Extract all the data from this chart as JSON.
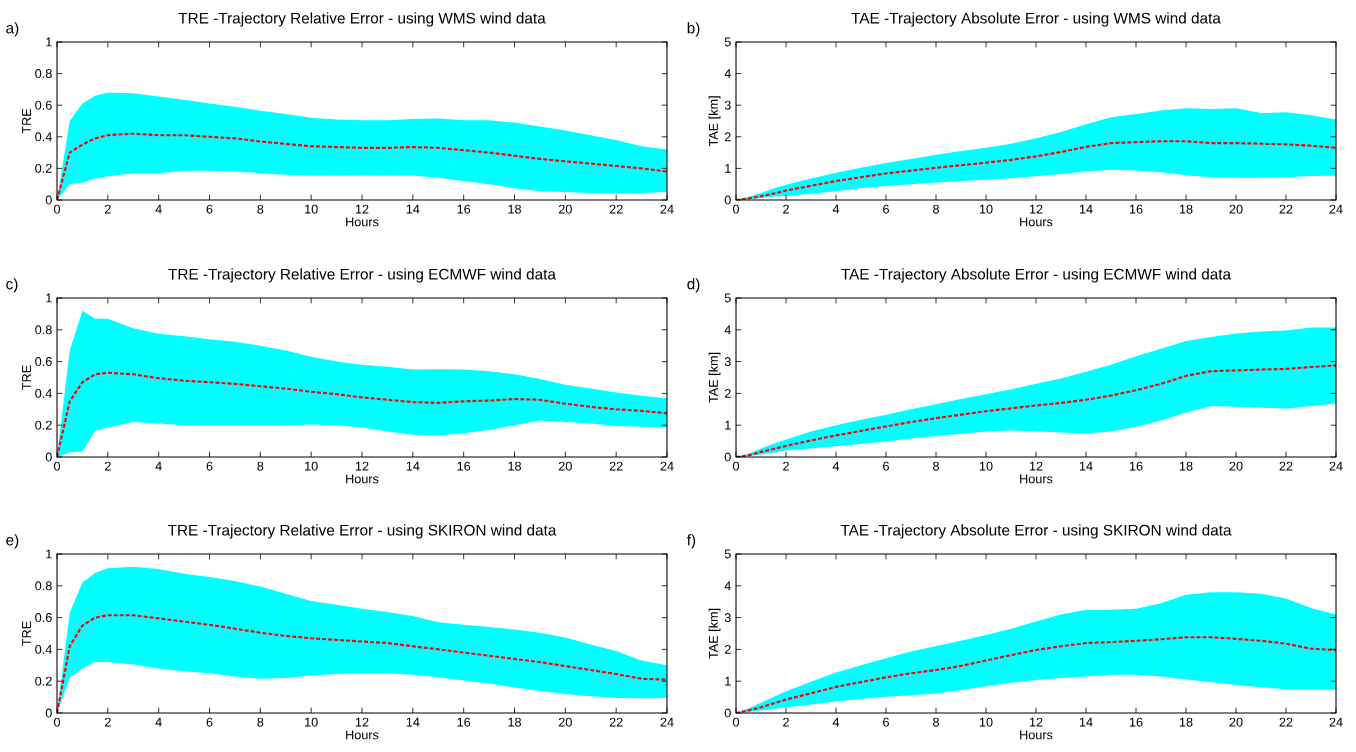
{
  "chart_data": [
    {
      "type": "line",
      "title": "TRE -Trajectory Relative Error - using WMS wind data",
      "annotations": [
        "a)"
      ],
      "xlabel": "Hours",
      "ylabel": "TRE",
      "xlim": [
        0,
        24
      ],
      "ylim": [
        0,
        1
      ],
      "xticks": [
        0,
        2,
        4,
        6,
        8,
        10,
        12,
        14,
        16,
        18,
        20,
        22,
        24
      ],
      "yticks": [
        0,
        0.2,
        0.4,
        0.6,
        0.8,
        1
      ],
      "grid": false,
      "marker": "none",
      "x": [
        0,
        0.5,
        1,
        1.5,
        2,
        3,
        4,
        5,
        6,
        7,
        8,
        9,
        10,
        11,
        12,
        13,
        14,
        15,
        16,
        17,
        18,
        19,
        20,
        21,
        22,
        23,
        24
      ],
      "series": [
        {
          "color": "#ff0000",
          "line_style": "dashed",
          "values": [
            0,
            0.3,
            0.35,
            0.39,
            0.41,
            0.42,
            0.41,
            0.41,
            0.4,
            0.39,
            0.37,
            0.355,
            0.34,
            0.335,
            0.33,
            0.33,
            0.335,
            0.33,
            0.315,
            0.3,
            0.28,
            0.26,
            0.245,
            0.23,
            0.215,
            0.2,
            0.18
          ],
          "lower": [
            0,
            0.1,
            0.11,
            0.135,
            0.15,
            0.17,
            0.17,
            0.185,
            0.185,
            0.18,
            0.17,
            0.16,
            0.155,
            0.153,
            0.156,
            0.154,
            0.155,
            0.14,
            0.12,
            0.1,
            0.075,
            0.055,
            0.05,
            0.045,
            0.043,
            0.045,
            0.05
          ],
          "upper": [
            0,
            0.5,
            0.61,
            0.66,
            0.68,
            0.675,
            0.655,
            0.635,
            0.61,
            0.59,
            0.565,
            0.545,
            0.52,
            0.51,
            0.505,
            0.505,
            0.512,
            0.515,
            0.505,
            0.505,
            0.49,
            0.465,
            0.44,
            0.41,
            0.38,
            0.34,
            0.32
          ]
        }
      ]
    },
    {
      "type": "line",
      "title": "TAE -Trajectory Absolute Error - using WMS wind data",
      "annotations": [
        "b)"
      ],
      "xlabel": "Hours",
      "ylabel": "TAE [km]",
      "xlim": [
        0,
        24
      ],
      "ylim": [
        0,
        5
      ],
      "xticks": [
        0,
        2,
        4,
        6,
        8,
        10,
        12,
        14,
        16,
        18,
        20,
        22,
        24
      ],
      "yticks": [
        0,
        1,
        2,
        3,
        4,
        5
      ],
      "grid": false,
      "marker": "none",
      "x": [
        0,
        0.5,
        1,
        1.5,
        2,
        3,
        4,
        5,
        6,
        7,
        8,
        9,
        10,
        11,
        12,
        13,
        14,
        15,
        16,
        17,
        18,
        19,
        20,
        21,
        22,
        23,
        24
      ],
      "series": [
        {
          "color": "#ff0000",
          "line_style": "dashed",
          "values": [
            0,
            0.05,
            0.12,
            0.2,
            0.3,
            0.45,
            0.6,
            0.72,
            0.84,
            0.93,
            1.02,
            1.1,
            1.18,
            1.27,
            1.38,
            1.52,
            1.68,
            1.8,
            1.83,
            1.86,
            1.86,
            1.8,
            1.8,
            1.78,
            1.76,
            1.72,
            1.65
          ],
          "lower": [
            0,
            0.02,
            0.065,
            0.1,
            0.13,
            0.2,
            0.28,
            0.37,
            0.44,
            0.5,
            0.555,
            0.6,
            0.64,
            0.69,
            0.75,
            0.82,
            0.9,
            0.96,
            0.93,
            0.88,
            0.78,
            0.72,
            0.7,
            0.7,
            0.72,
            0.76,
            0.77
          ],
          "upper": [
            0,
            0.1,
            0.22,
            0.36,
            0.48,
            0.68,
            0.86,
            1.02,
            1.17,
            1.3,
            1.43,
            1.55,
            1.65,
            1.78,
            1.95,
            2.15,
            2.4,
            2.62,
            2.72,
            2.83,
            2.9,
            2.88,
            2.9,
            2.75,
            2.78,
            2.68,
            2.55
          ]
        }
      ]
    },
    {
      "type": "line",
      "title": "TRE -Trajectory Relative Error - using ECMWF wind data",
      "annotations": [
        "c)"
      ],
      "xlabel": "Hours",
      "ylabel": "TRE",
      "xlim": [
        0,
        24
      ],
      "ylim": [
        0,
        1
      ],
      "xticks": [
        0,
        2,
        4,
        6,
        8,
        10,
        12,
        14,
        16,
        18,
        20,
        22,
        24
      ],
      "yticks": [
        0,
        0.2,
        0.4,
        0.6,
        0.8,
        1
      ],
      "grid": false,
      "marker": "none",
      "x": [
        0,
        0.5,
        1,
        1.5,
        2,
        3,
        4,
        5,
        6,
        7,
        8,
        9,
        10,
        11,
        12,
        13,
        14,
        15,
        16,
        17,
        18,
        19,
        20,
        21,
        22,
        23,
        24
      ],
      "series": [
        {
          "color": "#ff0000",
          "line_style": "dashed",
          "values": [
            0,
            0.35,
            0.47,
            0.52,
            0.53,
            0.52,
            0.495,
            0.48,
            0.47,
            0.46,
            0.445,
            0.43,
            0.41,
            0.395,
            0.375,
            0.36,
            0.345,
            0.34,
            0.35,
            0.355,
            0.365,
            0.36,
            0.335,
            0.315,
            0.3,
            0.29,
            0.275
          ],
          "lower": [
            0,
            0.03,
            0.035,
            0.165,
            0.185,
            0.22,
            0.21,
            0.2,
            0.2,
            0.2,
            0.2,
            0.2,
            0.205,
            0.2,
            0.185,
            0.16,
            0.14,
            0.135,
            0.15,
            0.17,
            0.2,
            0.23,
            0.22,
            0.21,
            0.195,
            0.19,
            0.185
          ],
          "upper": [
            0,
            0.67,
            0.92,
            0.87,
            0.87,
            0.81,
            0.775,
            0.76,
            0.74,
            0.725,
            0.7,
            0.67,
            0.63,
            0.6,
            0.58,
            0.567,
            0.55,
            0.552,
            0.55,
            0.54,
            0.52,
            0.49,
            0.455,
            0.43,
            0.405,
            0.385,
            0.37
          ]
        }
      ]
    },
    {
      "type": "line",
      "title": "TAE -Trajectory Absolute Error - using ECMWF wind data",
      "annotations": [
        "d)"
      ],
      "xlabel": "Hours",
      "ylabel": "TAE [km]",
      "xlim": [
        0,
        24
      ],
      "ylim": [
        0,
        5
      ],
      "xticks": [
        0,
        2,
        4,
        6,
        8,
        10,
        12,
        14,
        16,
        18,
        20,
        22,
        24
      ],
      "yticks": [
        0,
        1,
        2,
        3,
        4,
        5
      ],
      "grid": false,
      "marker": "none",
      "x": [
        0,
        0.5,
        1,
        1.5,
        2,
        3,
        4,
        5,
        6,
        7,
        8,
        9,
        10,
        11,
        12,
        13,
        14,
        15,
        16,
        17,
        18,
        19,
        20,
        21,
        22,
        23,
        24
      ],
      "series": [
        {
          "color": "#ff0000",
          "line_style": "dashed",
          "values": [
            0,
            0.05,
            0.16,
            0.25,
            0.35,
            0.52,
            0.68,
            0.82,
            0.96,
            1.1,
            1.22,
            1.33,
            1.44,
            1.53,
            1.62,
            1.7,
            1.8,
            1.93,
            2.1,
            2.3,
            2.55,
            2.7,
            2.72,
            2.75,
            2.77,
            2.83,
            2.88
          ],
          "lower": [
            0,
            0.03,
            0.08,
            0.135,
            0.2,
            0.27,
            0.34,
            0.41,
            0.49,
            0.58,
            0.66,
            0.73,
            0.8,
            0.83,
            0.81,
            0.77,
            0.74,
            0.8,
            0.95,
            1.15,
            1.4,
            1.6,
            1.58,
            1.55,
            1.52,
            1.6,
            1.68
          ],
          "upper": [
            0,
            0.1,
            0.27,
            0.42,
            0.55,
            0.8,
            1.0,
            1.17,
            1.33,
            1.5,
            1.66,
            1.82,
            1.97,
            2.13,
            2.3,
            2.47,
            2.68,
            2.9,
            3.17,
            3.4,
            3.65,
            3.77,
            3.88,
            3.95,
            3.98,
            4.07,
            4.07
          ]
        }
      ]
    },
    {
      "type": "line",
      "title": "TRE -Trajectory Relative Error - using SKIRON wind data",
      "annotations": [
        "e)"
      ],
      "xlabel": "Hours",
      "ylabel": "TRE",
      "xlim": [
        0,
        24
      ],
      "ylim": [
        0,
        1
      ],
      "xticks": [
        0,
        2,
        4,
        6,
        8,
        10,
        12,
        14,
        16,
        18,
        20,
        22,
        24
      ],
      "yticks": [
        0,
        0.2,
        0.4,
        0.6,
        0.8,
        1
      ],
      "grid": false,
      "marker": "none",
      "x": [
        0,
        0.5,
        1,
        1.5,
        2,
        3,
        4,
        5,
        6,
        7,
        8,
        9,
        10,
        11,
        12,
        13,
        14,
        15,
        16,
        17,
        18,
        19,
        20,
        21,
        22,
        23,
        24
      ],
      "series": [
        {
          "color": "#ff0000",
          "line_style": "dashed",
          "values": [
            0,
            0.42,
            0.55,
            0.6,
            0.615,
            0.615,
            0.595,
            0.575,
            0.555,
            0.53,
            0.505,
            0.485,
            0.47,
            0.46,
            0.45,
            0.44,
            0.42,
            0.4,
            0.38,
            0.36,
            0.34,
            0.32,
            0.295,
            0.27,
            0.245,
            0.215,
            0.21
          ],
          "lower": [
            0,
            0.22,
            0.28,
            0.32,
            0.32,
            0.305,
            0.28,
            0.262,
            0.25,
            0.23,
            0.215,
            0.22,
            0.235,
            0.245,
            0.25,
            0.25,
            0.24,
            0.225,
            0.205,
            0.185,
            0.16,
            0.138,
            0.12,
            0.105,
            0.095,
            0.093,
            0.095
          ],
          "upper": [
            0,
            0.63,
            0.82,
            0.88,
            0.91,
            0.92,
            0.905,
            0.875,
            0.855,
            0.83,
            0.795,
            0.75,
            0.705,
            0.68,
            0.655,
            0.635,
            0.61,
            0.57,
            0.555,
            0.54,
            0.525,
            0.505,
            0.475,
            0.43,
            0.39,
            0.33,
            0.3
          ]
        }
      ]
    },
    {
      "type": "line",
      "title": "TAE -Trajectory Absolute Error - using SKIRON wind data",
      "annotations": [
        "f)"
      ],
      "xlabel": "Hours",
      "ylabel": "TAE [km]",
      "xlim": [
        0,
        24
      ],
      "ylim": [
        0,
        5
      ],
      "xticks": [
        0,
        2,
        4,
        6,
        8,
        10,
        12,
        14,
        16,
        18,
        20,
        22,
        24
      ],
      "yticks": [
        0,
        1,
        2,
        3,
        4,
        5
      ],
      "grid": false,
      "marker": "none",
      "x": [
        0,
        0.5,
        1,
        1.5,
        2,
        3,
        4,
        5,
        6,
        7,
        8,
        9,
        10,
        11,
        12,
        13,
        14,
        15,
        16,
        17,
        18,
        19,
        20,
        21,
        22,
        23,
        24
      ],
      "series": [
        {
          "color": "#ff0000",
          "line_style": "dashed",
          "values": [
            0,
            0.08,
            0.18,
            0.3,
            0.42,
            0.62,
            0.82,
            0.97,
            1.12,
            1.25,
            1.35,
            1.48,
            1.65,
            1.82,
            1.98,
            2.1,
            2.2,
            2.23,
            2.27,
            2.32,
            2.38,
            2.38,
            2.33,
            2.27,
            2.18,
            2.02,
            1.98
          ],
          "lower": [
            0,
            0.03,
            0.08,
            0.13,
            0.18,
            0.27,
            0.36,
            0.44,
            0.51,
            0.56,
            0.61,
            0.72,
            0.84,
            0.95,
            1.04,
            1.1,
            1.15,
            1.2,
            1.2,
            1.15,
            1.05,
            0.97,
            0.88,
            0.81,
            0.75,
            0.74,
            0.73
          ],
          "upper": [
            0,
            0.15,
            0.32,
            0.5,
            0.68,
            0.98,
            1.27,
            1.5,
            1.72,
            1.93,
            2.11,
            2.27,
            2.45,
            2.65,
            2.88,
            3.1,
            3.25,
            3.25,
            3.28,
            3.45,
            3.72,
            3.8,
            3.8,
            3.75,
            3.6,
            3.3,
            3.1
          ]
        }
      ]
    }
  ]
}
